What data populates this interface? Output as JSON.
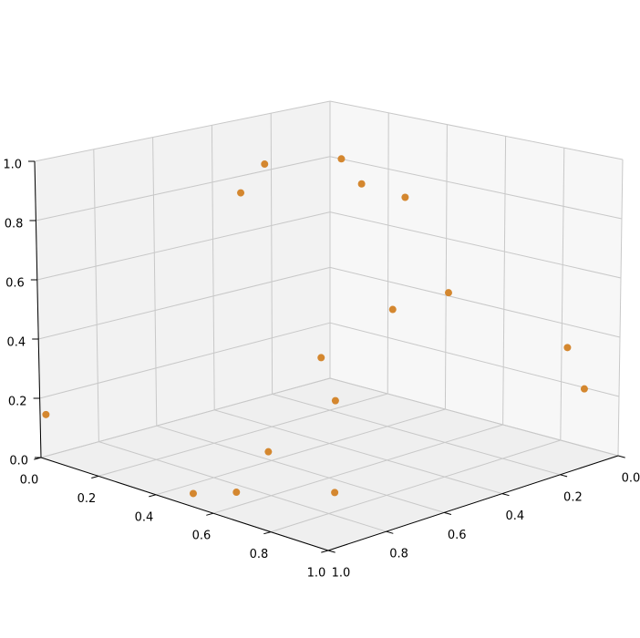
{
  "chart_data": {
    "type": "scatter3d",
    "color": "#d4872f",
    "x": [
      0,
      0.3,
      0.19,
      0.17,
      0.31,
      0.53,
      0.66,
      0.71,
      0.14,
      0.31,
      0.91,
      0.96,
      0.5,
      0.49,
      0.59,
      0.71
    ],
    "y": [
      0.98,
      0.6,
      0.41,
      0.13,
      0.2,
      0.27,
      0.25,
      0.49,
      0.17,
      0.29,
      0.09,
      0.08,
      0.71,
      0.96,
      0.91,
      0.69
    ],
    "z": [
      0.14,
      0.88,
      0.91,
      0.86,
      0.82,
      0.84,
      0.54,
      0.56,
      0.16,
      0.09,
      0.37,
      0.24,
      0.09,
      0.02,
      0.04,
      0.01
    ],
    "xlim": [
      0,
      1
    ],
    "ylim": [
      0,
      1
    ],
    "zlim": [
      0,
      1
    ],
    "xticks": [
      {
        "value": 0,
        "label": "0.0"
      },
      0.2,
      0.4,
      0.6,
      0.8,
      {
        "value": 1,
        "label": "1.0"
      }
    ],
    "yticks": [
      {
        "value": 0,
        "label": "0.0"
      },
      0.2,
      0.4,
      0.6,
      0.8,
      {
        "value": 1,
        "label": "1.0"
      }
    ],
    "zticks": [
      {
        "value": 0,
        "label": "0.0"
      },
      0.2,
      0.4,
      0.6,
      0.8,
      {
        "value": 1,
        "label": "1.0"
      }
    ],
    "grid": true
  }
}
